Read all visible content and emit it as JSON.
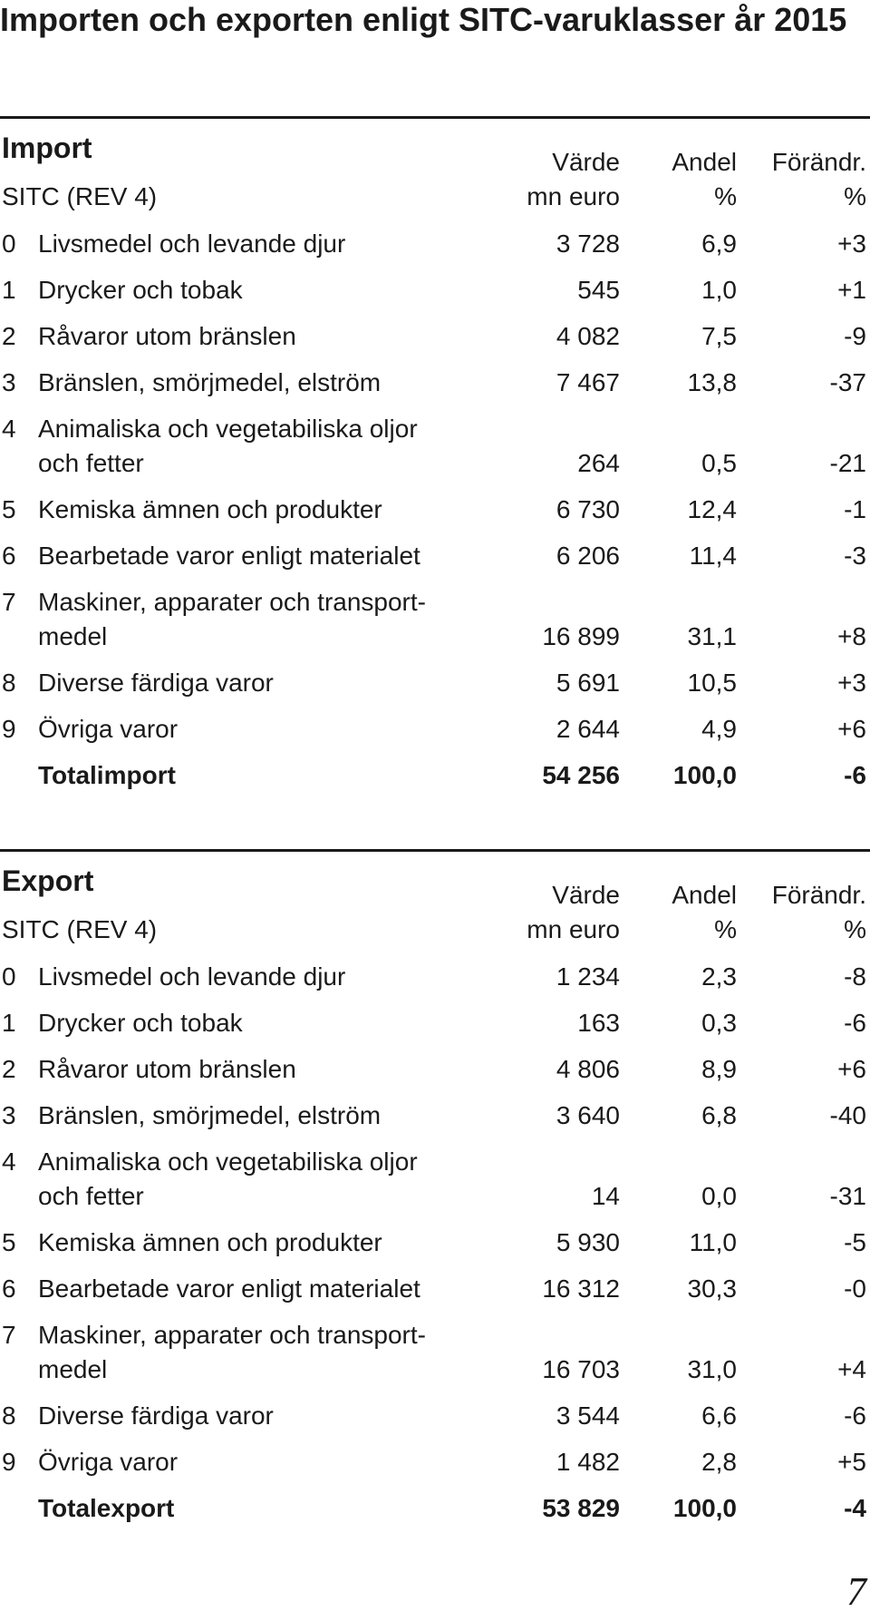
{
  "title": "Importen och exporten enligt SITC-varuklasser år 2015",
  "import": {
    "heading": "Import",
    "sitc_label": "SITC (REV 4)",
    "col_value": "Värde",
    "col_value_unit": "mn euro",
    "col_share": "Andel",
    "col_share_unit": "%",
    "col_change": "Förändr.",
    "col_change_unit": "%",
    "rows": [
      {
        "code": "0",
        "label1": "Livsmedel och levande djur",
        "label2": "",
        "value": "3 728",
        "share": "6,9",
        "change": "+3"
      },
      {
        "code": "1",
        "label1": "Drycker och tobak",
        "label2": "",
        "value": "545",
        "share": "1,0",
        "change": "+1"
      },
      {
        "code": "2",
        "label1": "Råvaror utom bränslen",
        "label2": "",
        "value": "4 082",
        "share": "7,5",
        "change": "-9"
      },
      {
        "code": "3",
        "label1": "Bränslen, smörjmedel, elström",
        "label2": "",
        "value": "7 467",
        "share": "13,8",
        "change": "-37"
      },
      {
        "code": "4",
        "label1": "Animaliska och vegetabiliska oljor",
        "label2": "och fetter",
        "value": "264",
        "share": "0,5",
        "change": "-21"
      },
      {
        "code": "5",
        "label1": "Kemiska ämnen och produkter",
        "label2": "",
        "value": "6 730",
        "share": "12,4",
        "change": "-1"
      },
      {
        "code": "6",
        "label1": "Bearbetade varor enligt materialet",
        "label2": "",
        "value": "6 206",
        "share": "11,4",
        "change": "-3"
      },
      {
        "code": "7",
        "label1": "Maskiner, apparater och transport-",
        "label2": "medel",
        "value": "16 899",
        "share": "31,1",
        "change": "+8"
      },
      {
        "code": "8",
        "label1": "Diverse färdiga varor",
        "label2": "",
        "value": "5 691",
        "share": "10,5",
        "change": "+3"
      },
      {
        "code": "9",
        "label1": "Övriga varor",
        "label2": "",
        "value": "2 644",
        "share": "4,9",
        "change": "+6"
      }
    ],
    "total": {
      "label": "Totalimport",
      "value": "54 256",
      "share": "100,0",
      "change": "-6"
    }
  },
  "export": {
    "heading": "Export",
    "sitc_label": "SITC (REV 4)",
    "col_value": "Värde",
    "col_value_unit": "mn euro",
    "col_share": "Andel",
    "col_share_unit": "%",
    "col_change": "Förändr.",
    "col_change_unit": "%",
    "rows": [
      {
        "code": "0",
        "label1": "Livsmedel och levande djur",
        "label2": "",
        "value": "1 234",
        "share": "2,3",
        "change": "-8"
      },
      {
        "code": "1",
        "label1": "Drycker och tobak",
        "label2": "",
        "value": "163",
        "share": "0,3",
        "change": "-6"
      },
      {
        "code": "2",
        "label1": "Råvaror utom bränslen",
        "label2": "",
        "value": "4 806",
        "share": "8,9",
        "change": "+6"
      },
      {
        "code": "3",
        "label1": "Bränslen, smörjmedel, elström",
        "label2": "",
        "value": "3 640",
        "share": "6,8",
        "change": "-40"
      },
      {
        "code": "4",
        "label1": "Animaliska och vegetabiliska oljor",
        "label2": "och fetter",
        "value": "14",
        "share": "0,0",
        "change": "-31"
      },
      {
        "code": "5",
        "label1": "Kemiska ämnen och produkter",
        "label2": "",
        "value": "5 930",
        "share": "11,0",
        "change": "-5"
      },
      {
        "code": "6",
        "label1": "Bearbetade varor enligt materialet",
        "label2": "",
        "value": "16 312",
        "share": "30,3",
        "change": "-0"
      },
      {
        "code": "7",
        "label1": "Maskiner, apparater och transport-",
        "label2": "medel",
        "value": "16 703",
        "share": "31,0",
        "change": "+4"
      },
      {
        "code": "8",
        "label1": "Diverse färdiga varor",
        "label2": "",
        "value": "3 544",
        "share": "6,6",
        "change": "-6"
      },
      {
        "code": "9",
        "label1": "Övriga varor",
        "label2": "",
        "value": "1 482",
        "share": "2,8",
        "change": "+5"
      }
    ],
    "total": {
      "label": "Totalexport",
      "value": "53 829",
      "share": "100,0",
      "change": "-4"
    }
  },
  "page_number": "7"
}
